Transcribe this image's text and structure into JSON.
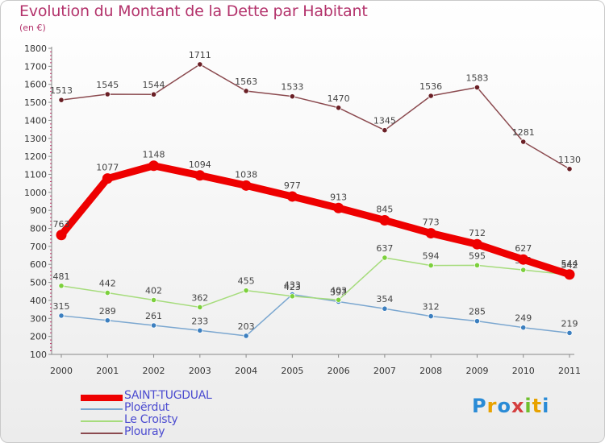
{
  "title": "Evolution du Montant de la Dette par Habitant",
  "unit": "(en €)",
  "logo_text": "Proxiti",
  "chart_data": {
    "type": "line",
    "title": "Evolution du Montant de la Dette par Habitant",
    "subtitle": "(en €)",
    "xlabel": "",
    "ylabel": "",
    "x": [
      "2000",
      "2001",
      "2002",
      "2003",
      "2004",
      "2005",
      "2006",
      "2007",
      "2008",
      "2009",
      "2010",
      "2011"
    ],
    "ylim": [
      100,
      1800
    ],
    "yticks": [
      100,
      200,
      300,
      400,
      500,
      600,
      700,
      800,
      900,
      1000,
      1100,
      1200,
      1300,
      1400,
      1500,
      1600,
      1700,
      1800
    ],
    "grid": false,
    "legend_position": "bottom-left",
    "series": [
      {
        "name": "SAINT-TUGDUAL",
        "color": "#ee0000",
        "point_color": "#ee0000",
        "values": [
          763,
          1077,
          1148,
          1094,
          1038,
          977,
          913,
          845,
          773,
          712,
          627,
          544
        ]
      },
      {
        "name": "Ploërdut",
        "color": "#7ba7d0",
        "point_color": "#3c7fbf",
        "values": [
          315,
          289,
          261,
          233,
          203,
          433,
          393,
          354,
          312,
          285,
          249,
          219
        ]
      },
      {
        "name": "Le Croisty",
        "color": "#a6dc7c",
        "point_color": "#7cd03c",
        "values": [
          481,
          442,
          402,
          362,
          455,
          423,
          403,
          637,
          594,
          595,
          569,
          542
        ]
      },
      {
        "name": "Plouray",
        "color": "#8b4a4f",
        "point_color": "#6a1f25",
        "values": [
          1513,
          1545,
          1544,
          1711,
          1563,
          1533,
          1470,
          1345,
          1536,
          1583,
          1281,
          1130
        ]
      }
    ]
  }
}
